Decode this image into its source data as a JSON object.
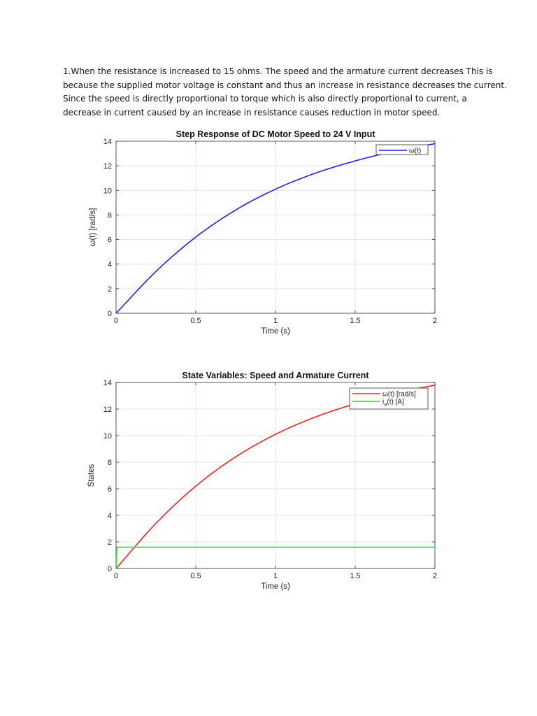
{
  "paragraph": {
    "lines": [
      "1.When the resistance is increased to 15 ohms. The speed and the armature current decreases This is",
      "because the supplied motor voltage is constant and thus an increase in resistance decreases the current.",
      "Since the speed is directly proportional to torque which is also directly proportional to current, a",
      "decrease in current caused by an increase in resistance causes reduction in motor speed."
    ]
  },
  "chart_data": [
    {
      "type": "line",
      "title": "Step Response of DC Motor Speed to 24 V Input",
      "xlabel": "Time (s)",
      "ylabel": "ω(t) [rad/s]",
      "xlim": [
        0,
        2
      ],
      "ylim": [
        0,
        14
      ],
      "xticks": [
        "0",
        "0.5",
        "1",
        "1.5",
        "2"
      ],
      "yticks": [
        "0",
        "2",
        "4",
        "6",
        "8",
        "10",
        "12",
        "14"
      ],
      "grid": true,
      "legend_position": "top-right",
      "series": [
        {
          "name": "ω(t)",
          "color": "#1f1fff",
          "x": [
            0,
            0.25,
            0.5,
            0.75,
            1.0,
            1.25,
            1.5,
            1.75,
            2.0
          ],
          "y": [
            0,
            3.4,
            6.2,
            8.4,
            10.1,
            11.4,
            12.4,
            13.2,
            13.8
          ]
        }
      ]
    },
    {
      "type": "line",
      "title": "State Variables: Speed and Armature Current",
      "xlabel": "Time (s)",
      "ylabel": "States",
      "xlim": [
        0,
        2
      ],
      "ylim": [
        0,
        14
      ],
      "xticks": [
        "0",
        "0.5",
        "1",
        "1.5",
        "2"
      ],
      "yticks": [
        "0",
        "2",
        "4",
        "6",
        "8",
        "10",
        "12",
        "14"
      ],
      "grid": true,
      "legend_position": "top-right",
      "series": [
        {
          "name": "ω(t) [rad/s]",
          "name_main": "ω(t) [rad/s]",
          "color": "#ff2020",
          "x": [
            0,
            0.25,
            0.5,
            0.75,
            1.0,
            1.25,
            1.5,
            1.75,
            2.0
          ],
          "y": [
            0,
            3.4,
            6.2,
            8.4,
            10.1,
            11.4,
            12.4,
            13.2,
            13.8
          ]
        },
        {
          "name": "i",
          "name_sub": "a",
          "name_rest": "(t) [A]",
          "color": "#20e020",
          "x": [
            0,
            0.005,
            2.0
          ],
          "y": [
            0,
            1.6,
            1.6
          ]
        }
      ]
    }
  ]
}
